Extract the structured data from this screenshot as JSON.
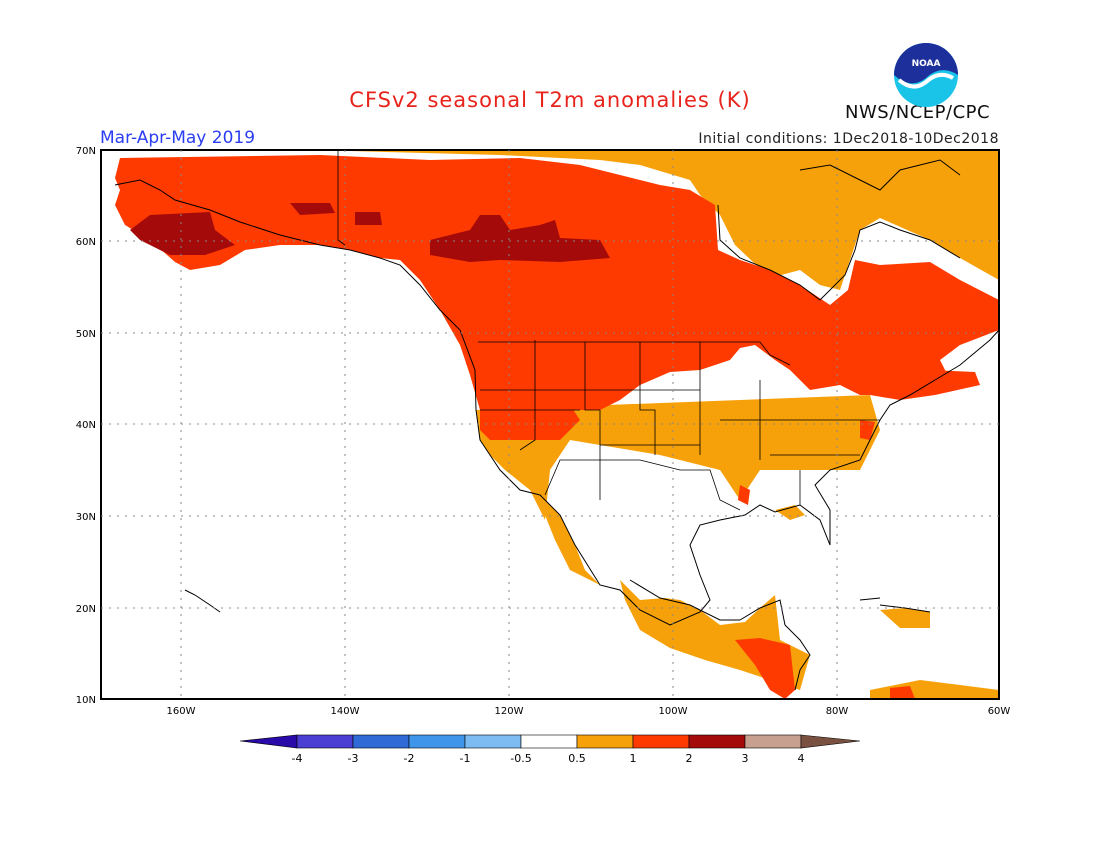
{
  "header": {
    "title": "CFSv2 seasonal T2m anomalies (K)",
    "period": "Mar-Apr-May 2019",
    "initial_conditions": "Initial conditions: 1Dec2018-10Dec2018",
    "agency": "NWS/NCEP/CPC",
    "logo_text": "NOAA"
  },
  "map": {
    "region": "North America",
    "lat_labels": [
      "70N",
      "60N",
      "50N",
      "40N",
      "30N",
      "20N",
      "10N"
    ],
    "lon_labels": [
      "160W",
      "140W",
      "120W",
      "100W",
      "80W",
      "60W"
    ],
    "grid": true
  },
  "colorbar": {
    "tick_labels": [
      "-4",
      "-3",
      "-2",
      "-1",
      "-0.5",
      "0.5",
      "1",
      "2",
      "3",
      "4"
    ],
    "colors": {
      "lt_-4": "#2a0aa8",
      "n4_n3": "#4a3fd2",
      "n3_n2": "#2f6ad6",
      "n2_n1": "#3f95ea",
      "n1_n05": "#7dbcf2",
      "n05_05": "#ffffff",
      "p05_1": "#f7a10a",
      "p1_2": "#ff3a00",
      "p2_3": "#a50a0a",
      "p3_4": "#c8a090",
      "gt_4": "#7a5040"
    }
  }
}
